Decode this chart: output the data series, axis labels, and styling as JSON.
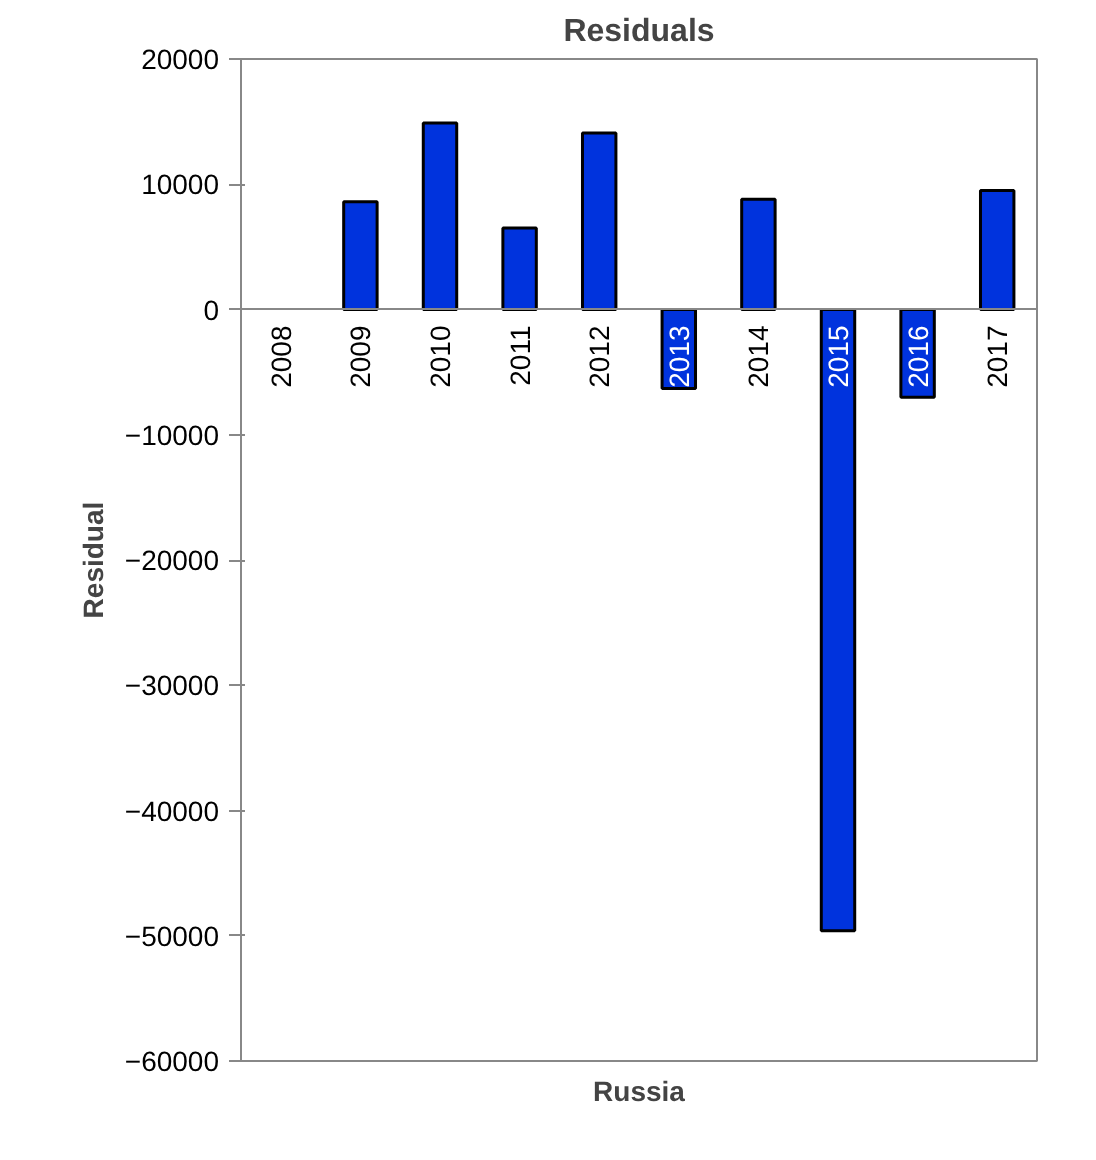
{
  "chart_data": {
    "type": "bar",
    "title": "Residuals",
    "xlabel": "Russia",
    "ylabel": "Residual",
    "categories": [
      "2008",
      "2009",
      "2010",
      "2011",
      "2012",
      "2013",
      "2014",
      "2015",
      "2016",
      "2017"
    ],
    "values": [
      null,
      8600,
      14900,
      6500,
      14100,
      -6300,
      8800,
      -49600,
      -7000,
      9500
    ],
    "color": "#0033dd",
    "ylim": [
      -60000,
      20000
    ],
    "yticks": [
      -60000,
      -50000,
      -40000,
      -30000,
      -20000,
      -10000,
      0,
      10000,
      20000
    ],
    "grid": false
  }
}
